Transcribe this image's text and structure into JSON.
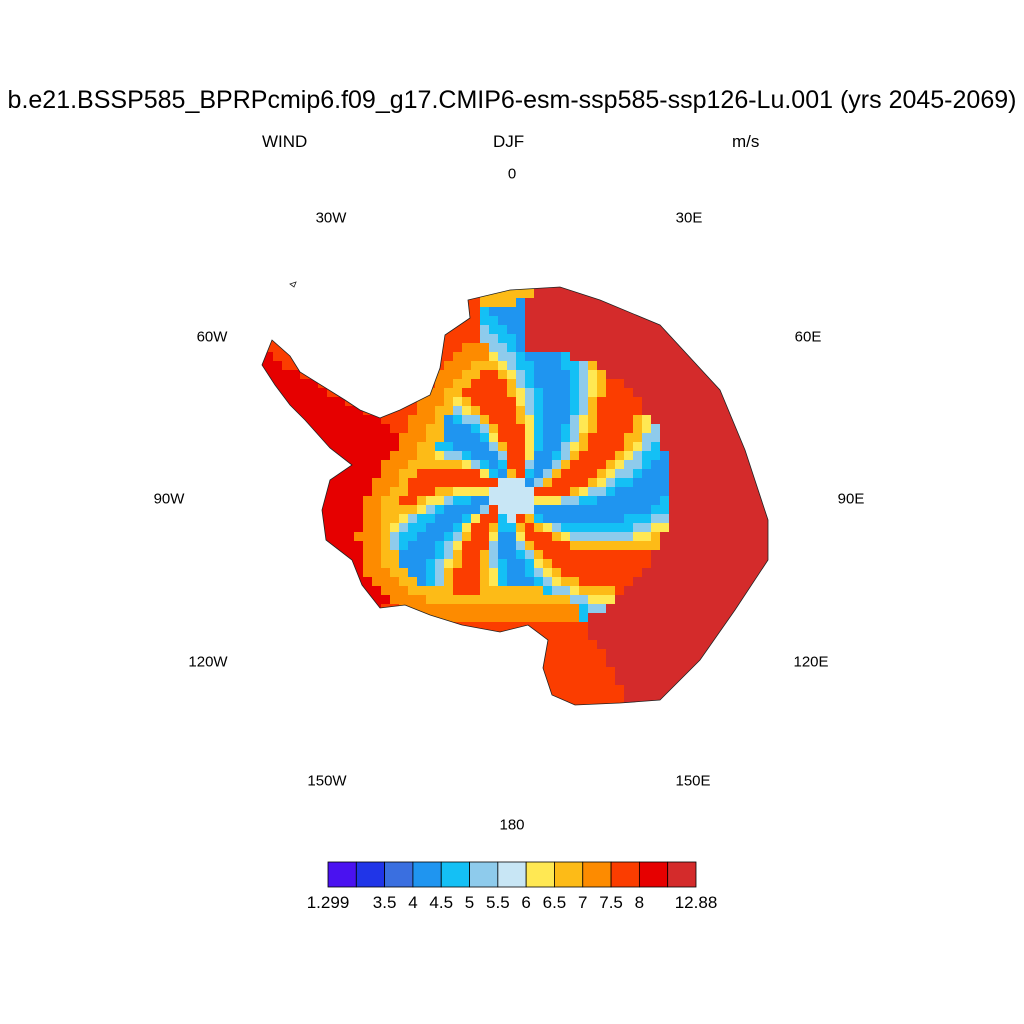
{
  "title": "b.e21.BSSP585_BPRPcmip6.f09_g17.CMIP6-esm-ssp585-ssp126-Lu.001 (yrs 2045-2069)",
  "left_string": "WIND",
  "center_string": "DJF",
  "right_string": "m/s",
  "longitude_labels": [
    "0",
    "30E",
    "60E",
    "90E",
    "120E",
    "150E",
    "180",
    "150W",
    "120W",
    "90W",
    "60W",
    "30W"
  ],
  "chart_data": {
    "type": "heatmap",
    "projection": "south polar stereographic",
    "variable": "WIND",
    "season": "DJF",
    "units": "m/s",
    "region": "Antarctica",
    "colorbar": {
      "colors": [
        "#4a12f0",
        "#2035e8",
        "#3a6fe0",
        "#1f95f0",
        "#14c0f5",
        "#8ecbec",
        "#c8e6f5",
        "#ffe853",
        "#fdbb17",
        "#fd8b00",
        "#fb3d00",
        "#e60000",
        "#d42b2b"
      ],
      "tick_labels": [
        "1.299",
        "3.5",
        "4",
        "4.5",
        "5",
        "5.5",
        "6",
        "6.5",
        "7",
        "7.5",
        "8",
        "12.88"
      ],
      "min": 1.299,
      "max": 12.88
    },
    "fields": {
      "coastal_ring_east_0_to_150E": 12.88,
      "coastal_ring_west_peninsula": 8,
      "inner_ring": 7,
      "plateau_low_wind_sectors": 5,
      "south_pole_center": 6
    }
  }
}
